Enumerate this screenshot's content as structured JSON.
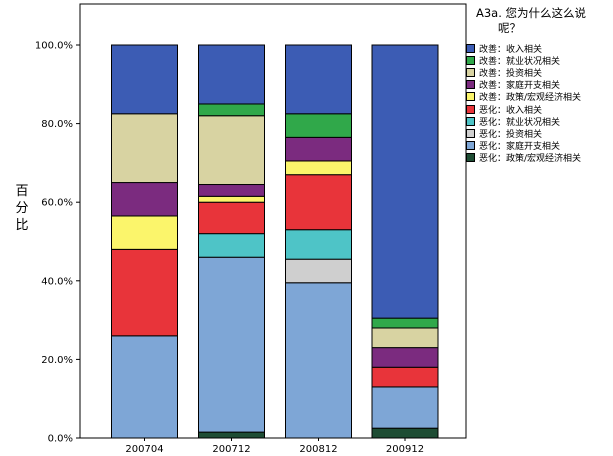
{
  "chart_data": {
    "type": "bar",
    "stacked": true,
    "title": "",
    "xlabel": "",
    "ylabel": "百分比",
    "ylim": [
      0,
      100
    ],
    "yticks": [
      "0.0%",
      "20.0%",
      "40.0%",
      "60.0%",
      "80.0%",
      "100.0%"
    ],
    "grid": false,
    "legend_position": "right",
    "legend_title": "A3a. 您为什么这么说呢？",
    "categories": [
      "200704",
      "200712",
      "200812",
      "200912"
    ],
    "series": [
      {
        "name": "恶化：政策/宏观经济相关",
        "color": "#1e4d34",
        "values": [
          0,
          1.5,
          0,
          2.5
        ]
      },
      {
        "name": "恶化：家庭开支相关",
        "color": "#7ea6d6",
        "values": [
          26,
          44.5,
          39.5,
          10.5
        ]
      },
      {
        "name": "恶化：投资相关",
        "color": "#cfcfcf",
        "values": [
          0,
          0,
          6,
          0
        ]
      },
      {
        "name": "恶化：就业状况相关",
        "color": "#4ec4c7",
        "values": [
          0,
          6,
          7.5,
          0
        ]
      },
      {
        "name": "恶化：收入相关",
        "color": "#e8343a",
        "values": [
          22,
          8,
          14,
          5
        ]
      },
      {
        "name": "改善：政策/宏观经济相关",
        "color": "#fbf56b",
        "values": [
          8.5,
          1.5,
          3.5,
          0
        ]
      },
      {
        "name": "改善：家庭开支相关",
        "color": "#7b2b7f",
        "values": [
          8.5,
          3,
          6,
          5
        ]
      },
      {
        "name": "改善：投资相关",
        "color": "#d8d3a2",
        "values": [
          17.5,
          17.5,
          0,
          5
        ]
      },
      {
        "name": "改善：就业状况相关",
        "color": "#30a84a",
        "values": [
          0,
          3,
          6,
          2.5
        ]
      },
      {
        "name": "改善：收入相关",
        "color": "#3c5cb4",
        "values": [
          17.5,
          15,
          17.5,
          69.5
        ]
      }
    ]
  },
  "legend": {
    "title_lines": [
      "A3a. 您为什么这么说",
      "呢？"
    ],
    "items": [
      {
        "label": "改善：收入相关",
        "color": "#3c5cb4"
      },
      {
        "label": "改善：就业状况相关",
        "color": "#30a84a"
      },
      {
        "label": "改善：投资相关",
        "color": "#d8d3a2"
      },
      {
        "label": "改善：家庭开支相关",
        "color": "#7b2b7f"
      },
      {
        "label": "改善：政策/宏观经济相关",
        "color": "#fbf56b"
      },
      {
        "label": "恶化：收入相关",
        "color": "#e8343a"
      },
      {
        "label": "恶化：就业状况相关",
        "color": "#4ec4c7"
      },
      {
        "label": "恶化：投资相关",
        "color": "#cfcfcf"
      },
      {
        "label": "恶化：家庭开支相关",
        "color": "#7ea6d6"
      },
      {
        "label": "恶化：政策/宏观经济相关",
        "color": "#1e4d34"
      }
    ]
  },
  "colors": {
    "plot_background": "#ffffff",
    "axis": "#000000"
  }
}
